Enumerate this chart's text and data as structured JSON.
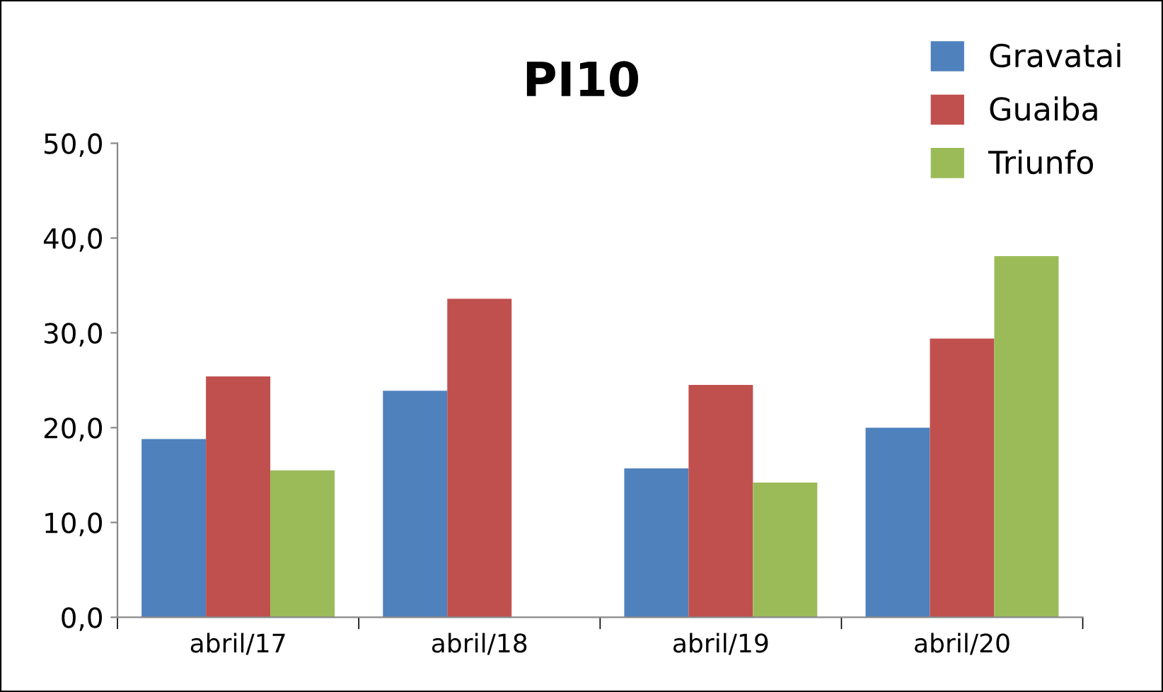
{
  "chart_data": {
    "type": "bar",
    "title": "PI10",
    "categories": [
      "abril/17",
      "abril/18",
      "abril/19",
      "abril/20"
    ],
    "series": [
      {
        "name": "Gravatai",
        "color": "#4f81bd",
        "values": [
          18.8,
          23.9,
          15.7,
          20.0
        ]
      },
      {
        "name": "Guaiba",
        "color": "#c0504d",
        "values": [
          25.4,
          33.6,
          24.5,
          29.4
        ]
      },
      {
        "name": "Triunfo",
        "color": "#9bbb59",
        "values": [
          15.5,
          null,
          14.2,
          38.1
        ]
      }
    ],
    "ylim": [
      0,
      50
    ],
    "yticks": [
      {
        "value": 0,
        "label": "0,0"
      },
      {
        "value": 10,
        "label": "10,0"
      },
      {
        "value": 20,
        "label": "20,0"
      },
      {
        "value": 30,
        "label": "30,0"
      },
      {
        "value": 40,
        "label": "40,0"
      },
      {
        "value": 50,
        "label": "50,0"
      }
    ],
    "grid": false,
    "legend": "top right"
  }
}
